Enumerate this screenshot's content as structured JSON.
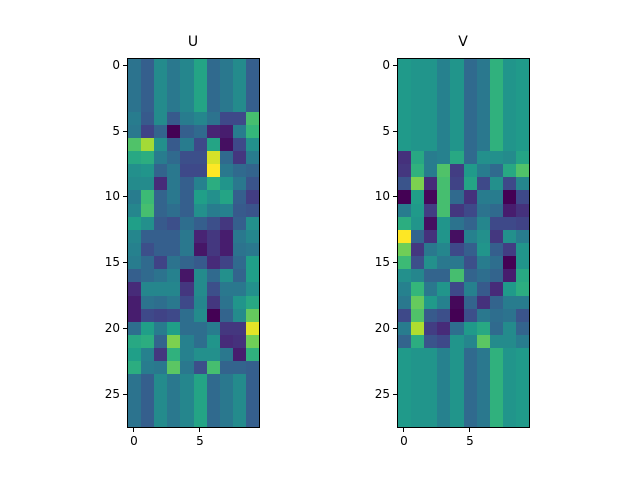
{
  "chart_data": [
    {
      "type": "heatmap",
      "title": "U",
      "colormap": "viridis",
      "rows": 28,
      "cols": 10,
      "xticks": [
        0,
        5
      ],
      "yticks": [
        0,
        5,
        10,
        15,
        20,
        25
      ],
      "xlim": [
        -0.5,
        9.5
      ],
      "ylim": [
        27.5,
        -0.5
      ],
      "values": [
        [
          0.38,
          0.3,
          0.48,
          0.4,
          0.46,
          0.58,
          0.34,
          0.4,
          0.48,
          0.3
        ],
        [
          0.38,
          0.3,
          0.48,
          0.4,
          0.46,
          0.58,
          0.34,
          0.4,
          0.48,
          0.3
        ],
        [
          0.38,
          0.3,
          0.48,
          0.4,
          0.46,
          0.58,
          0.34,
          0.4,
          0.48,
          0.3
        ],
        [
          0.38,
          0.3,
          0.48,
          0.4,
          0.46,
          0.58,
          0.34,
          0.4,
          0.48,
          0.3
        ],
        [
          0.42,
          0.28,
          0.48,
          0.28,
          0.42,
          0.46,
          0.38,
          0.22,
          0.22,
          0.7
        ],
        [
          0.4,
          0.2,
          0.32,
          0.0,
          0.3,
          0.34,
          0.1,
          0.08,
          0.42,
          0.66
        ],
        [
          0.72,
          0.86,
          0.5,
          0.28,
          0.42,
          0.22,
          0.58,
          0.04,
          0.22,
          0.5
        ],
        [
          0.6,
          0.62,
          0.42,
          0.34,
          0.24,
          0.24,
          0.94,
          0.34,
          0.16,
          0.42
        ],
        [
          0.5,
          0.52,
          0.32,
          0.4,
          0.22,
          0.22,
          1.0,
          0.4,
          0.34,
          0.32
        ],
        [
          0.48,
          0.48,
          0.12,
          0.4,
          0.3,
          0.44,
          0.62,
          0.52,
          0.4,
          0.26
        ],
        [
          0.42,
          0.68,
          0.32,
          0.4,
          0.3,
          0.56,
          0.5,
          0.58,
          0.3,
          0.18
        ],
        [
          0.46,
          0.7,
          0.32,
          0.36,
          0.3,
          0.5,
          0.42,
          0.44,
          0.28,
          0.26
        ],
        [
          0.56,
          0.5,
          0.28,
          0.24,
          0.36,
          0.3,
          0.24,
          0.16,
          0.3,
          0.5
        ],
        [
          0.46,
          0.3,
          0.3,
          0.3,
          0.4,
          0.1,
          0.16,
          0.08,
          0.4,
          0.46
        ],
        [
          0.44,
          0.24,
          0.3,
          0.3,
          0.4,
          0.06,
          0.16,
          0.08,
          0.38,
          0.4
        ],
        [
          0.42,
          0.34,
          0.2,
          0.38,
          0.32,
          0.28,
          0.12,
          0.2,
          0.34,
          0.56
        ],
        [
          0.3,
          0.34,
          0.38,
          0.44,
          0.06,
          0.48,
          0.34,
          0.5,
          0.32,
          0.56
        ],
        [
          0.12,
          0.46,
          0.46,
          0.46,
          0.16,
          0.48,
          0.24,
          0.4,
          0.4,
          0.5
        ],
        [
          0.08,
          0.38,
          0.36,
          0.4,
          0.22,
          0.46,
          0.16,
          0.38,
          0.52,
          0.6
        ],
        [
          0.08,
          0.22,
          0.2,
          0.22,
          0.36,
          0.48,
          0.0,
          0.32,
          0.48,
          0.76
        ],
        [
          0.36,
          0.56,
          0.42,
          0.56,
          0.36,
          0.36,
          0.42,
          0.16,
          0.16,
          0.96
        ],
        [
          0.6,
          0.62,
          0.32,
          0.8,
          0.44,
          0.36,
          0.52,
          0.12,
          0.14,
          0.78
        ],
        [
          0.56,
          0.44,
          0.16,
          0.64,
          0.44,
          0.5,
          0.5,
          0.4,
          0.08,
          0.64
        ],
        [
          0.62,
          0.42,
          0.4,
          0.74,
          0.4,
          0.24,
          0.7,
          0.32,
          0.32,
          0.3
        ],
        [
          0.38,
          0.3,
          0.48,
          0.4,
          0.46,
          0.58,
          0.34,
          0.4,
          0.48,
          0.3
        ],
        [
          0.38,
          0.3,
          0.48,
          0.4,
          0.46,
          0.58,
          0.34,
          0.4,
          0.48,
          0.3
        ],
        [
          0.38,
          0.3,
          0.48,
          0.4,
          0.46,
          0.58,
          0.34,
          0.4,
          0.48,
          0.3
        ],
        [
          0.38,
          0.3,
          0.48,
          0.4,
          0.46,
          0.58,
          0.34,
          0.4,
          0.48,
          0.3
        ]
      ]
    },
    {
      "type": "heatmap",
      "title": "V",
      "colormap": "viridis",
      "rows": 28,
      "cols": 10,
      "xticks": [
        0,
        5
      ],
      "yticks": [
        0,
        5,
        10,
        15,
        20,
        25
      ],
      "xlim": [
        -0.5,
        9.5
      ],
      "ylim": [
        27.5,
        -0.5
      ],
      "values": [
        [
          0.54,
          0.52,
          0.52,
          0.44,
          0.52,
          0.34,
          0.4,
          0.64,
          0.52,
          0.54
        ],
        [
          0.54,
          0.52,
          0.52,
          0.44,
          0.52,
          0.34,
          0.4,
          0.64,
          0.52,
          0.54
        ],
        [
          0.54,
          0.52,
          0.52,
          0.44,
          0.52,
          0.34,
          0.4,
          0.64,
          0.52,
          0.54
        ],
        [
          0.54,
          0.52,
          0.52,
          0.44,
          0.52,
          0.34,
          0.4,
          0.64,
          0.52,
          0.54
        ],
        [
          0.54,
          0.52,
          0.52,
          0.44,
          0.52,
          0.34,
          0.4,
          0.64,
          0.52,
          0.54
        ],
        [
          0.54,
          0.52,
          0.52,
          0.44,
          0.52,
          0.34,
          0.4,
          0.64,
          0.52,
          0.54
        ],
        [
          0.54,
          0.52,
          0.52,
          0.44,
          0.52,
          0.34,
          0.4,
          0.64,
          0.52,
          0.54
        ],
        [
          0.14,
          0.6,
          0.42,
          0.44,
          0.6,
          0.34,
          0.5,
          0.5,
          0.48,
          0.58
        ],
        [
          0.16,
          0.64,
          0.42,
          0.72,
          0.18,
          0.54,
          0.42,
          0.34,
          0.6,
          0.72
        ],
        [
          0.26,
          0.8,
          0.12,
          0.7,
          0.2,
          0.58,
          0.22,
          0.5,
          0.22,
          0.46
        ],
        [
          0.0,
          0.56,
          0.02,
          0.7,
          0.34,
          0.14,
          0.42,
          0.42,
          0.0,
          0.22
        ],
        [
          0.42,
          0.54,
          0.18,
          0.7,
          0.16,
          0.22,
          0.38,
          0.34,
          0.08,
          0.14
        ],
        [
          0.62,
          0.52,
          0.04,
          0.52,
          0.38,
          0.32,
          0.46,
          0.22,
          0.22,
          0.2
        ],
        [
          1.0,
          0.32,
          0.14,
          0.52,
          0.04,
          0.44,
          0.5,
          0.16,
          0.5,
          0.42
        ],
        [
          0.78,
          0.16,
          0.4,
          0.46,
          0.22,
          0.3,
          0.52,
          0.3,
          0.18,
          0.52
        ],
        [
          0.68,
          0.24,
          0.5,
          0.4,
          0.4,
          0.24,
          0.42,
          0.36,
          0.0,
          0.52
        ],
        [
          0.5,
          0.46,
          0.32,
          0.32,
          0.7,
          0.32,
          0.36,
          0.32,
          0.08,
          0.6
        ],
        [
          0.44,
          0.66,
          0.4,
          0.52,
          0.22,
          0.44,
          0.28,
          0.12,
          0.54,
          0.62
        ],
        [
          0.4,
          0.76,
          0.54,
          0.44,
          0.02,
          0.32,
          0.14,
          0.32,
          0.42,
          0.42
        ],
        [
          0.22,
          0.72,
          0.28,
          0.24,
          0.0,
          0.24,
          0.4,
          0.36,
          0.38,
          0.26
        ],
        [
          0.42,
          0.88,
          0.18,
          0.12,
          0.36,
          0.54,
          0.6,
          0.34,
          0.48,
          0.32
        ],
        [
          0.32,
          0.62,
          0.26,
          0.22,
          0.52,
          0.46,
          0.74,
          0.48,
          0.48,
          0.42
        ],
        [
          0.54,
          0.52,
          0.52,
          0.44,
          0.52,
          0.34,
          0.4,
          0.64,
          0.52,
          0.54
        ],
        [
          0.54,
          0.52,
          0.52,
          0.44,
          0.52,
          0.34,
          0.4,
          0.64,
          0.52,
          0.54
        ],
        [
          0.54,
          0.52,
          0.52,
          0.44,
          0.52,
          0.34,
          0.4,
          0.64,
          0.52,
          0.54
        ],
        [
          0.54,
          0.52,
          0.52,
          0.44,
          0.52,
          0.34,
          0.4,
          0.64,
          0.52,
          0.54
        ],
        [
          0.54,
          0.52,
          0.52,
          0.44,
          0.52,
          0.34,
          0.4,
          0.64,
          0.52,
          0.54
        ],
        [
          0.54,
          0.52,
          0.52,
          0.44,
          0.52,
          0.34,
          0.4,
          0.64,
          0.52,
          0.54
        ]
      ]
    }
  ],
  "colormap_stops": [
    "#440154",
    "#482878",
    "#3e4a89",
    "#31688e",
    "#26828e",
    "#1f9e89",
    "#35b779",
    "#6ece58",
    "#b5de2b",
    "#fde725"
  ],
  "axes": [
    {
      "title": "U",
      "xtick_labels": [
        "0",
        "5"
      ],
      "ytick_labels": [
        "0",
        "5",
        "10",
        "15",
        "20",
        "25"
      ]
    },
    {
      "title": "V",
      "xtick_labels": [
        "0",
        "5"
      ],
      "ytick_labels": [
        "0",
        "5",
        "10",
        "15",
        "20",
        "25"
      ]
    }
  ]
}
